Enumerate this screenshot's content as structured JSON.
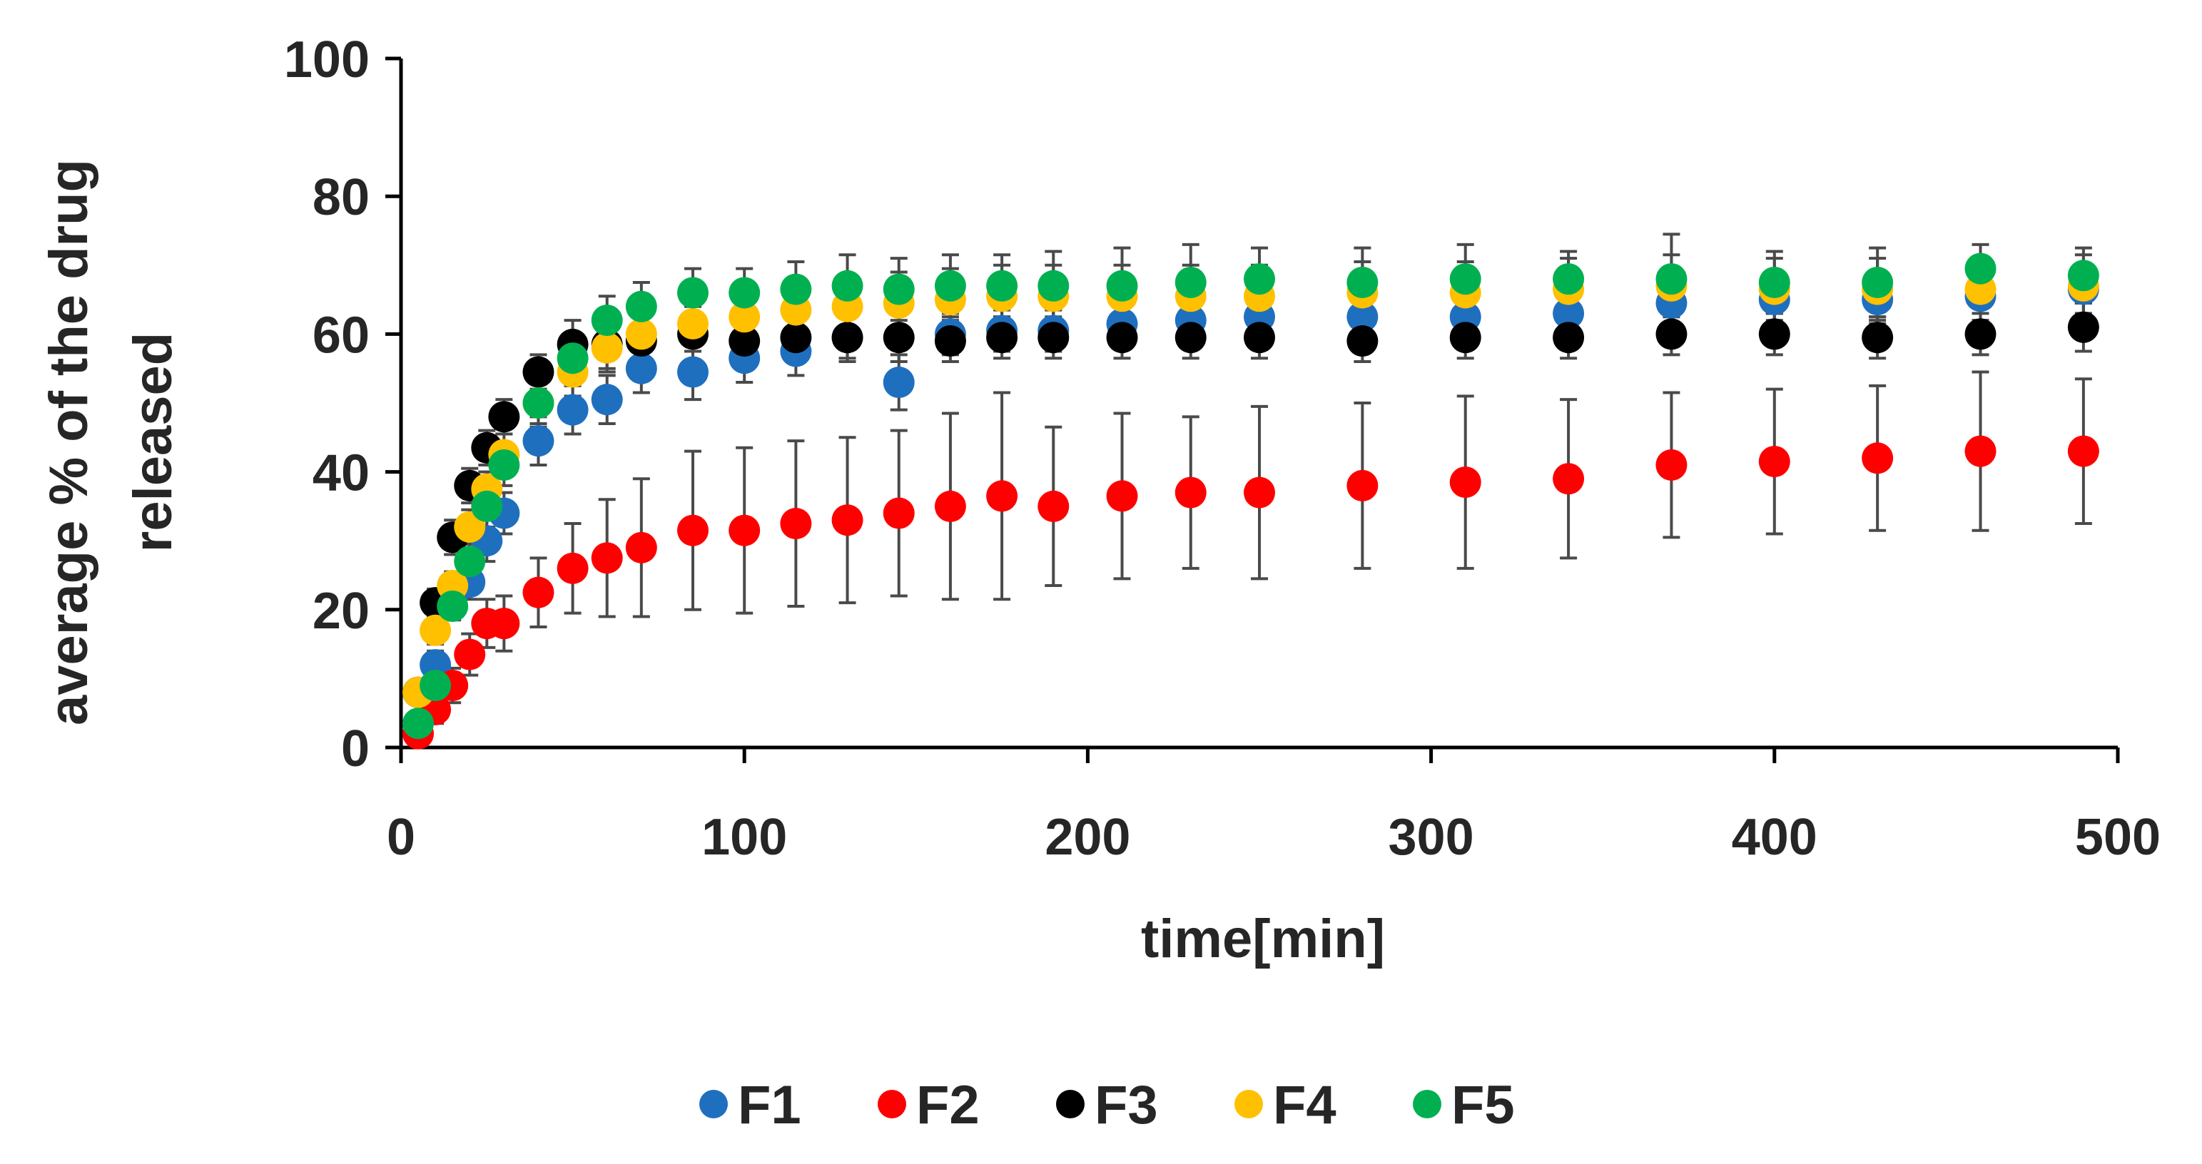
{
  "chart_data": {
    "type": "scatter",
    "title": "",
    "xlabel": "time[min]",
    "ylabel_lines": [
      "average % of the drug",
      "released"
    ],
    "xlim": [
      0,
      500
    ],
    "ylim": [
      0,
      100
    ],
    "xticks": [
      0,
      100,
      200,
      300,
      400,
      500
    ],
    "yticks": [
      0,
      20,
      40,
      60,
      80,
      100
    ],
    "xtick_labels": [
      "0",
      "100",
      "200",
      "300",
      "400",
      "500"
    ],
    "ytick_labels": [
      "0",
      "20",
      "40",
      "60",
      "80",
      "100"
    ],
    "grid": false,
    "legend_position": "bottom",
    "series": [
      {
        "name": "F1",
        "color": "#1f6fbf",
        "x": [
          5,
          10,
          15,
          20,
          25,
          30,
          40,
          50,
          60,
          70,
          85,
          100,
          115,
          130,
          145,
          160,
          175,
          190,
          210,
          230,
          250,
          280,
          310,
          340,
          370,
          400,
          430,
          460,
          490
        ],
        "y": [
          8,
          12,
          22,
          24,
          30,
          34,
          44.5,
          49,
          50.5,
          55,
          54.5,
          56.5,
          57.5,
          59.5,
          53,
          60,
          60.5,
          60.5,
          61.5,
          62,
          62.5,
          62.5,
          62.5,
          63,
          64.5,
          65,
          65,
          65.5,
          66.5
        ],
        "err": [
          1.5,
          2,
          2,
          2.5,
          3,
          3,
          3.5,
          3.5,
          3.5,
          3.5,
          4,
          3.5,
          3.5,
          3.5,
          4,
          3,
          3,
          3,
          3.5,
          3.5,
          3.5,
          3.5,
          3.5,
          3.5,
          3.5,
          3.5,
          3.5,
          3.5,
          3.5
        ]
      },
      {
        "name": "F2",
        "color": "#ff0000",
        "x": [
          5,
          10,
          15,
          20,
          25,
          30,
          40,
          50,
          60,
          70,
          85,
          100,
          115,
          130,
          145,
          160,
          175,
          190,
          210,
          230,
          250,
          280,
          310,
          340,
          370,
          400,
          430,
          460,
          490
        ],
        "y": [
          2,
          5.5,
          9,
          13.5,
          18,
          18,
          22.5,
          26,
          27.5,
          29,
          31.5,
          31.5,
          32.5,
          33,
          34,
          35,
          36.5,
          35,
          36.5,
          37,
          37,
          38,
          38.5,
          39,
          41,
          41.5,
          42,
          43,
          43
        ],
        "err": [
          1.5,
          2,
          2.5,
          3,
          3.5,
          4,
          5,
          6.5,
          8.5,
          10,
          11.5,
          12,
          12,
          12,
          12,
          13.5,
          15,
          11.5,
          12,
          11,
          12.5,
          12,
          12.5,
          11.5,
          10.5,
          10.5,
          10.5,
          11.5,
          10.5
        ]
      },
      {
        "name": "F3",
        "color": "#000000",
        "x": [
          5,
          10,
          15,
          20,
          25,
          30,
          40,
          50,
          60,
          70,
          85,
          100,
          115,
          130,
          145,
          160,
          175,
          190,
          210,
          230,
          250,
          280,
          310,
          340,
          370,
          400,
          430,
          460,
          490
        ],
        "y": [
          8,
          21,
          30.5,
          38,
          43.5,
          48,
          54.5,
          58.5,
          58.5,
          59,
          60,
          59,
          59.5,
          59.5,
          59.5,
          59,
          59.5,
          59.5,
          59.5,
          59.5,
          59.5,
          59,
          59.5,
          59.5,
          60,
          60,
          59.5,
          60,
          61
        ],
        "err": [
          1.5,
          2,
          2.5,
          2.5,
          2.5,
          2.5,
          2.5,
          3.5,
          3.5,
          3.5,
          4,
          3.5,
          3.5,
          3,
          3.5,
          3,
          3,
          3,
          3,
          3,
          3,
          3,
          3,
          3,
          3,
          3,
          3,
          3,
          3.5
        ]
      },
      {
        "name": "F4",
        "color": "#ffc000",
        "x": [
          5,
          10,
          15,
          20,
          25,
          30,
          40,
          50,
          60,
          70,
          85,
          100,
          115,
          130,
          145,
          160,
          175,
          190,
          210,
          230,
          250,
          280,
          310,
          340,
          370,
          400,
          430,
          460,
          490
        ],
        "y": [
          8,
          17,
          23.5,
          32,
          37.5,
          42.5,
          50,
          54.5,
          58,
          60,
          61.5,
          62.5,
          63.5,
          64,
          64.5,
          65,
          65.5,
          65.5,
          65.5,
          65.5,
          65.5,
          66,
          66,
          66.5,
          67,
          66.5,
          66.5,
          66.5,
          67
        ],
        "err": [
          1.5,
          2,
          2,
          2.5,
          2.5,
          3,
          3,
          3.5,
          3.5,
          4,
          4,
          4,
          4,
          4.5,
          4.5,
          4.5,
          4.5,
          4.5,
          4.5,
          4.5,
          4.5,
          4.5,
          4.5,
          4.5,
          4.5,
          4.5,
          4.5,
          4.5,
          4.5
        ]
      },
      {
        "name": "F5",
        "color": "#00b050",
        "x": [
          5,
          10,
          15,
          20,
          25,
          30,
          40,
          50,
          60,
          70,
          85,
          100,
          115,
          130,
          145,
          160,
          175,
          190,
          210,
          230,
          250,
          280,
          310,
          340,
          370,
          400,
          430,
          460,
          490
        ],
        "y": [
          3.5,
          9,
          20.5,
          27,
          35,
          41,
          50,
          56.5,
          62,
          64,
          66,
          66,
          66.5,
          67,
          66.5,
          67,
          67,
          67,
          67,
          67.5,
          68,
          67.5,
          68,
          68,
          68,
          67.5,
          67.5,
          69.5,
          68.5
        ],
        "err": [
          1.5,
          2,
          2,
          2.5,
          3,
          3,
          3.5,
          3.5,
          3.5,
          3.5,
          3.5,
          3.5,
          4,
          4.5,
          4.5,
          4.5,
          4.5,
          5,
          5.5,
          5.5,
          4.5,
          5,
          5,
          4,
          6.5,
          4.5,
          5,
          3.5,
          4
        ]
      }
    ]
  }
}
